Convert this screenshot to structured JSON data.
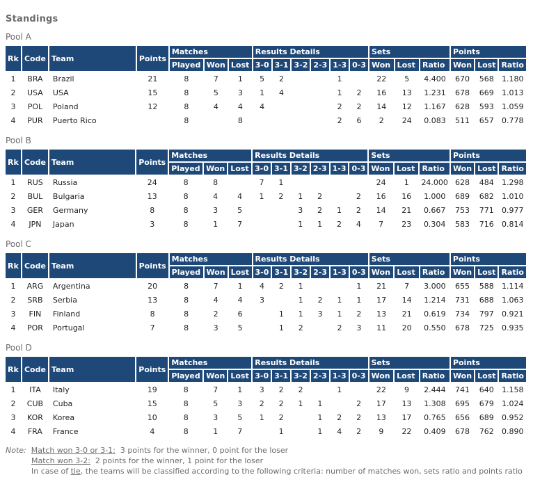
{
  "page_title": "Standings",
  "headers": {
    "rk": "Rk",
    "code": "Code",
    "team": "Team",
    "points": "Points",
    "matches": "Matches",
    "played": "Played",
    "won": "Won",
    "lost": "Lost",
    "results_details": "Results Details",
    "s30": "3-0",
    "s31": "3-1",
    "s32": "3-2",
    "s23": "2-3",
    "s13": "1-3",
    "s03": "0-3",
    "sets": "Sets",
    "ratio": "Ratio",
    "points_group": "Points"
  },
  "colors": {
    "header_bg": "#1e4878",
    "header_text": "#ffffff",
    "label_text": "#6b6b6b",
    "data_text": "#222222"
  },
  "pools": [
    {
      "id": "a",
      "name": "Pool A",
      "rows": [
        [
          "1",
          "BRA",
          "Brazil",
          "21",
          "8",
          "7",
          "1",
          "5",
          "2",
          "",
          "",
          "1",
          "",
          "22",
          "5",
          "4.400",
          "670",
          "568",
          "1.180"
        ],
        [
          "2",
          "USA",
          "USA",
          "15",
          "8",
          "5",
          "3",
          "1",
          "4",
          "",
          "",
          "1",
          "2",
          "16",
          "13",
          "1.231",
          "678",
          "669",
          "1.013"
        ],
        [
          "3",
          "POL",
          "Poland",
          "12",
          "8",
          "4",
          "4",
          "4",
          "",
          "",
          "",
          "2",
          "2",
          "14",
          "12",
          "1.167",
          "628",
          "593",
          "1.059"
        ],
        [
          "4",
          "PUR",
          "Puerto Rico",
          "",
          "8",
          "",
          "8",
          "",
          "",
          "",
          "",
          "2",
          "6",
          "2",
          "24",
          "0.083",
          "511",
          "657",
          "0.778"
        ]
      ]
    },
    {
      "id": "b",
      "name": "Pool B",
      "rows": [
        [
          "1",
          "RUS",
          "Russia",
          "24",
          "8",
          "8",
          "",
          "7",
          "1",
          "",
          "",
          "",
          "",
          "24",
          "1",
          "24.000",
          "628",
          "484",
          "1.298"
        ],
        [
          "2",
          "BUL",
          "Bulgaria",
          "13",
          "8",
          "4",
          "4",
          "1",
          "2",
          "1",
          "2",
          "",
          "2",
          "16",
          "16",
          "1.000",
          "689",
          "682",
          "1.010"
        ],
        [
          "3",
          "GER",
          "Germany",
          "8",
          "8",
          "3",
          "5",
          "",
          "",
          "3",
          "2",
          "1",
          "2",
          "14",
          "21",
          "0.667",
          "753",
          "771",
          "0.977"
        ],
        [
          "4",
          "JPN",
          "Japan",
          "3",
          "8",
          "1",
          "7",
          "",
          "",
          "1",
          "1",
          "2",
          "4",
          "7",
          "23",
          "0.304",
          "583",
          "716",
          "0.814"
        ]
      ]
    },
    {
      "id": "c",
      "name": "Pool C",
      "rows": [
        [
          "1",
          "ARG",
          "Argentina",
          "20",
          "8",
          "7",
          "1",
          "4",
          "2",
          "1",
          "",
          "",
          "1",
          "21",
          "7",
          "3.000",
          "655",
          "588",
          "1.114"
        ],
        [
          "2",
          "SRB",
          "Serbia",
          "13",
          "8",
          "4",
          "4",
          "3",
          "",
          "1",
          "2",
          "1",
          "1",
          "17",
          "14",
          "1.214",
          "731",
          "688",
          "1.063"
        ],
        [
          "3",
          "FIN",
          "Finland",
          "8",
          "8",
          "2",
          "6",
          "",
          "1",
          "1",
          "3",
          "1",
          "2",
          "13",
          "21",
          "0.619",
          "734",
          "797",
          "0.921"
        ],
        [
          "4",
          "POR",
          "Portugal",
          "7",
          "8",
          "3",
          "5",
          "",
          "1",
          "2",
          "",
          "2",
          "3",
          "11",
          "20",
          "0.550",
          "678",
          "725",
          "0.935"
        ]
      ]
    },
    {
      "id": "d",
      "name": "Pool D",
      "rows": [
        [
          "1",
          "ITA",
          "Italy",
          "19",
          "8",
          "7",
          "1",
          "3",
          "2",
          "2",
          "",
          "1",
          "",
          "22",
          "9",
          "2.444",
          "741",
          "640",
          "1.158"
        ],
        [
          "2",
          "CUB",
          "Cuba",
          "15",
          "8",
          "5",
          "3",
          "2",
          "2",
          "1",
          "1",
          "",
          "2",
          "17",
          "13",
          "1.308",
          "695",
          "679",
          "1.024"
        ],
        [
          "3",
          "KOR",
          "Korea",
          "10",
          "8",
          "3",
          "5",
          "1",
          "2",
          "",
          "1",
          "2",
          "2",
          "13",
          "17",
          "0.765",
          "656",
          "689",
          "0.952"
        ],
        [
          "4",
          "FRA",
          "France",
          "4",
          "8",
          "1",
          "7",
          "",
          "1",
          "",
          "1",
          "4",
          "2",
          "9",
          "22",
          "0.409",
          "678",
          "762",
          "0.890"
        ]
      ]
    }
  ],
  "note": {
    "label": "Note:",
    "rule1_underlined": "Match won 3-0 or 3-1:",
    "rule1_text": "  3 points for the winner, 0 point for the loser",
    "rule2_underlined": "Match won 3-2:",
    "rule2_text": "  2 points for the winner, 1 point for the loser",
    "rule3_pre": "In case of ",
    "rule3_underlined": "tie",
    "rule3_text": ", the teams will be classified according to the following criteria: number of matches won, sets ratio and points ratio"
  }
}
